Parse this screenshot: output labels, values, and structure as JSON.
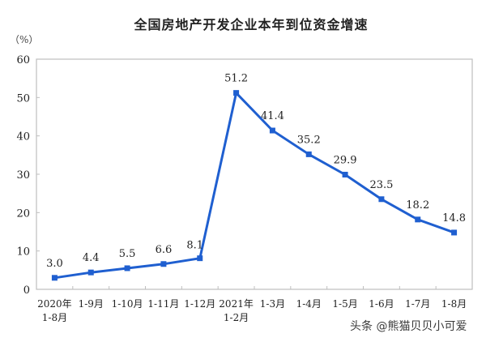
{
  "title": "全国房地产开发企业本年到位资金增速",
  "unit_label": "（%）",
  "watermark": "头条 @熊猫贝贝小可爱",
  "colors": {
    "line": "#1f5fd0",
    "axis": "#bfbfbf",
    "text": "#222222"
  },
  "chart_data": {
    "type": "line",
    "title": "全国房地产开发企业本年到位资金增速",
    "xlabel": "",
    "ylabel": "（%）",
    "ylim": [
      0,
      60
    ],
    "yticks": [
      0,
      10,
      20,
      30,
      40,
      50,
      60
    ],
    "grid": false,
    "legend": null,
    "categories": [
      "2020年\n1-8月",
      "1-9月",
      "1-10月",
      "1-11月",
      "1-12月",
      "2021年\n1-2月",
      "1-3月",
      "1-4月",
      "1-5月",
      "1-6月",
      "1-7月",
      "1-8月"
    ],
    "series": [
      {
        "name": "全国房地产开发企业本年到位资金增速",
        "values": [
          3.0,
          4.4,
          5.5,
          6.6,
          8.1,
          51.2,
          41.4,
          35.2,
          29.9,
          23.5,
          18.2,
          14.8
        ]
      }
    ],
    "data_labels": [
      "3.0",
      "4.4",
      "5.5",
      "6.6",
      "8.1",
      "51.2",
      "41.4",
      "35.2",
      "29.9",
      "23.5",
      "18.2",
      "14.8"
    ]
  }
}
